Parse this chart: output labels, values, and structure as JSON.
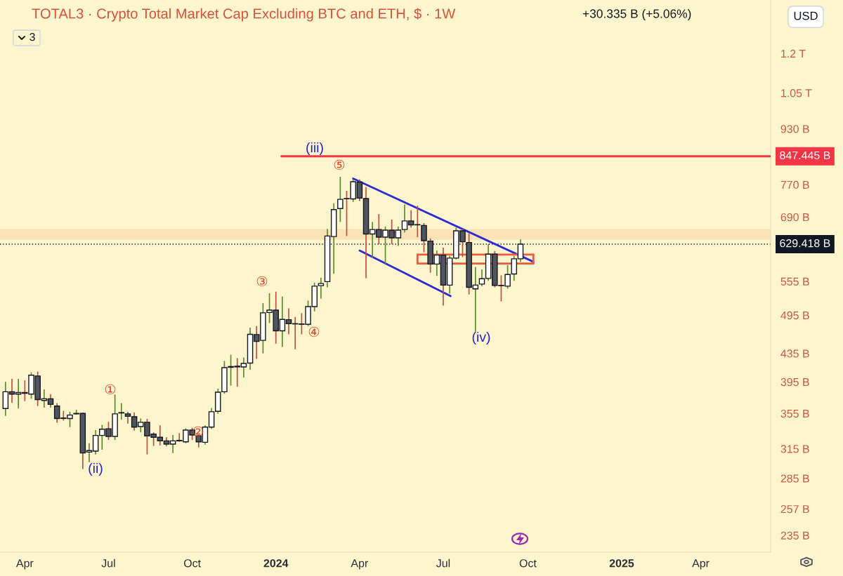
{
  "chart_data": {
    "type": "candlestick",
    "title": "TOTAL3 · Crypto Total Market Cap Excluding BTC and ETH, $ · 1W",
    "subtitle": "+30.335 B (+5.06%)",
    "x": [
      "2023-03-13",
      "2023-03-20",
      "2023-03-27",
      "2023-04-03",
      "2023-04-10",
      "2023-04-17",
      "2023-04-24",
      "2023-05-01",
      "2023-05-08",
      "2023-05-15",
      "2023-05-22",
      "2023-05-29",
      "2023-06-05",
      "2023-06-12",
      "2023-06-19",
      "2023-06-26",
      "2023-07-03",
      "2023-07-10",
      "2023-07-17",
      "2023-07-24",
      "2023-07-31",
      "2023-08-07",
      "2023-08-14",
      "2023-08-21",
      "2023-08-28",
      "2023-09-04",
      "2023-09-11",
      "2023-09-18",
      "2023-09-25",
      "2023-10-02",
      "2023-10-09",
      "2023-10-16",
      "2023-10-23",
      "2023-10-30",
      "2023-11-06",
      "2023-11-13",
      "2023-11-20",
      "2023-11-27",
      "2023-12-04",
      "2023-12-11",
      "2023-12-18",
      "2023-12-25",
      "2024-01-01",
      "2024-01-08",
      "2024-01-15",
      "2024-01-22",
      "2024-01-29",
      "2024-02-05",
      "2024-02-12",
      "2024-02-19",
      "2024-02-26",
      "2024-03-04",
      "2024-03-11",
      "2024-03-18",
      "2024-03-25",
      "2024-04-01",
      "2024-04-08",
      "2024-04-15",
      "2024-04-22",
      "2024-04-29",
      "2024-05-06",
      "2024-05-13",
      "2024-05-20",
      "2024-05-27",
      "2024-06-03",
      "2024-06-10",
      "2024-06-17",
      "2024-06-24",
      "2024-07-01",
      "2024-07-08",
      "2024-07-15",
      "2024-07-22",
      "2024-07-29",
      "2024-08-05",
      "2024-08-12",
      "2024-08-19",
      "2024-08-26",
      "2024-09-02",
      "2024-09-09",
      "2024-09-16",
      "2024-09-23"
    ],
    "ohlc": [
      [
        361000000000.0,
        395000000000.0,
        352000000000.0,
        382000000000.0
      ],
      [
        382000000000.0,
        399000000000.0,
        368000000000.0,
        379000000000.0
      ],
      [
        379000000000.0,
        399000000000.0,
        361000000000.0,
        381000000000.0
      ],
      [
        381000000000.0,
        397000000000.0,
        370000000000.0,
        380000000000.0
      ],
      [
        379000000000.0,
        408000000000.0,
        373000000000.0,
        404000000000.0
      ],
      [
        403000000000.0,
        409000000000.0,
        364000000000.0,
        372000000000.0
      ],
      [
        371000000000.0,
        385000000000.0,
        362000000000.0,
        373000000000.0
      ],
      [
        373000000000.0,
        379000000000.0,
        362000000000.0,
        366000000000.0
      ],
      [
        364000000000.0,
        367500000000.0,
        344000000000.0,
        349000000000.0
      ],
      [
        349500000000.0,
        358000000000.0,
        346500000000.0,
        349000000000.0
      ],
      [
        349000000000.0,
        357000000000.0,
        339000000000.0,
        353000000000.0
      ],
      [
        354500000000.0,
        359500000000.0,
        353500000000.0,
        355000000000.0
      ],
      [
        355000000000.0,
        356000000000.0,
        294000000000.0,
        310500000000.0
      ],
      [
        311500000000.0,
        321000000000.0,
        301000000000.0,
        313000000000.0
      ],
      [
        312500000000.0,
        335500000000.0,
        309000000000.0,
        329500000000.0
      ],
      [
        329500000000.0,
        341500000000.0,
        314000000000.0,
        336500000000.0
      ],
      [
        337000000000.0,
        345000000000.0,
        324500000000.0,
        328500000000.0
      ],
      [
        328500000000.0,
        378500000000.0,
        324500000000.0,
        354500000000.0
      ],
      [
        355500000000.0,
        367500000000.0,
        347500000000.0,
        356000000000.0
      ],
      [
        354500000000.0,
        357000000000.0,
        343000000000.0,
        351500000000.0
      ],
      [
        351000000000.0,
        356000000000.0,
        335000000000.0,
        339000000000.0
      ],
      [
        339500000000.0,
        349000000000.0,
        333000000000.0,
        344500000000.0
      ],
      [
        344500000000.0,
        348500000000.0,
        309000000000.0,
        329000000000.0
      ],
      [
        331000000000.0,
        333000000000.0,
        318000000000.0,
        327500000000.0
      ],
      [
        327500000000.0,
        341000000000.0,
        318500000000.0,
        323500000000.0
      ],
      [
        323500000000.0,
        327500000000.0,
        317500000000.0,
        320000000000.0
      ],
      [
        320000000000.0,
        330000000000.0,
        310500000000.0,
        323500000000.0
      ],
      [
        324000000000.0,
        332000000000.0,
        322500000000.0,
        323500000000.0
      ],
      [
        322500000000.0,
        337500000000.0,
        321000000000.0,
        335500000000.0
      ],
      [
        335500000000.0,
        338000000000.0,
        324500000000.0,
        330000000000.0
      ],
      [
        329000000000.0,
        330000000000.0,
        316500000000.0,
        322500000000.0
      ],
      [
        322000000000.0,
        341000000000.0,
        319500000000.0,
        339000000000.0
      ],
      [
        339000000000.0,
        361500000000.0,
        337000000000.0,
        357000000000.0
      ],
      [
        357500000000.0,
        386000000000.0,
        354500000000.0,
        381500000000.0
      ],
      [
        382000000000.0,
        424000000000.0,
        379500000000.0,
        414500000000.0
      ],
      [
        415000000000.0,
        433000000000.0,
        390000000000.0,
        416000000000.0
      ],
      [
        416500000000.0,
        428000000000.0,
        388500000000.0,
        415500000000.0
      ],
      [
        415500000000.0,
        429000000000.0,
        401000000000.0,
        420500000000.0
      ],
      [
        421000000000.0,
        474500000000.0,
        411500000000.0,
        464000000000.0
      ],
      [
        463500000000.0,
        477000000000.0,
        427000000000.0,
        453000000000.0
      ],
      [
        454500000000.0,
        515500000000.0,
        435000000000.0,
        499000000000.0
      ],
      [
        499500000000.0,
        533000000000.0,
        482000000000.0,
        503500000000.0
      ],
      [
        503500000000.0,
        536000000000.0,
        449500000000.0,
        469500000000.0
      ],
      [
        469500000000.0,
        527000000000.0,
        444500000000.0,
        488000000000.0
      ],
      [
        487500000000.0,
        506500000000.0,
        464000000000.0,
        481000000000.0
      ],
      [
        481000000000.0,
        492000000000.0,
        441000000000.0,
        480500000000.0
      ],
      [
        480500000000.0,
        498500000000.0,
        464000000000.0,
        480000000000.0
      ],
      [
        480000000000.0,
        520000000000.0,
        477000000000.0,
        509500000000.0
      ],
      [
        509500000000.0,
        552500000000.0,
        501500000000.0,
        546000000000.0
      ],
      [
        547000000000.0,
        562000000000.0,
        523500000000.0,
        551000000000.0
      ],
      [
        554500000000.0,
        663000000000.0,
        544000000000.0,
        647000000000.0
      ],
      [
        646000000000.0,
        723000000000.0,
        569500000000.0,
        707500000000.0
      ],
      [
        710000000000.0,
        790500000000.0,
        678500000000.0,
        732500000000.0
      ],
      [
        734500000000.0,
        754000000000.0,
        647000000000.0,
        734000000000.0
      ],
      [
        733500000000.0,
        782500000000.0,
        726000000000.0,
        777500000000.0
      ],
      [
        776500000000.0,
        783500000000.0,
        728500000000.0,
        735500000000.0
      ],
      [
        734500000000.0,
        764000000000.0,
        561000000000.0,
        651500000000.0
      ],
      [
        651500000000.0,
        678500000000.0,
        600500000000.0,
        661500000000.0
      ],
      [
        661500000000.0,
        697000000000.0,
        629500000000.0,
        644500000000.0
      ],
      [
        644500000000.0,
        668000000000.0,
        588500000000.0,
        660000000000.0
      ],
      [
        660000000000.0,
        684000000000.0,
        629500000000.0,
        643000000000.0
      ],
      [
        643000000000.0,
        668000000000.0,
        626000000000.0,
        660000000000.0
      ],
      [
        661500000000.0,
        720000000000.0,
        655000000000.0,
        681000000000.0
      ],
      [
        681000000000.0,
        706000000000.0,
        665500000000.0,
        672000000000.0
      ],
      [
        672500000000.0,
        717000000000.0,
        644500000000.0,
        672000000000.0
      ],
      [
        670500000000.0,
        676000000000.0,
        612500000000.0,
        637000000000.0
      ],
      [
        636000000000.0,
        642000000000.0,
        571500000000.0,
        588500000000.0
      ],
      [
        588500000000.0,
        616000000000.0,
        565500000000.0,
        606500000000.0
      ],
      [
        606500000000.0,
        622000000000.0,
        511500000000.0,
        548000000000.0
      ],
      [
        548000000000.0,
        605000000000.0,
        532500000000.0,
        600500000000.0
      ],
      [
        600500000000.0,
        665500000000.0,
        598000000000.0,
        658500000000.0
      ],
      [
        658500000000.0,
        662500000000.0,
        602500000000.0,
        634500000000.0
      ],
      [
        633000000000.0,
        653000000000.0,
        531000000000.0,
        544000000000.0
      ],
      [
        541000000000.0,
        582500000000.0,
        468000000000.0,
        548000000000.0
      ],
      [
        550000000000.0,
        578000000000.0,
        546000000000.0,
        560000000000.0
      ],
      [
        560500000000.0,
        629500000000.0,
        556000000000.0,
        608500000000.0
      ],
      [
        608500000000.0,
        615000000000.0,
        544000000000.0,
        547500000000.0
      ],
      [
        547500000000.0,
        566500000000.0,
        518500000000.0,
        547000000000.0
      ],
      [
        546000000000.0,
        586500000000.0,
        541500000000.0,
        568000000000.0
      ],
      [
        569000000000.0,
        605000000000.0,
        556000000000.0,
        599000000000.0
      ],
      [
        599000000000.0,
        639500000000.0,
        592500000000.0,
        629418000000.0
      ]
    ],
    "series": [
      {
        "type": "line",
        "x": [
          "2024-01-07",
          "2025-06-22"
        ],
        "values": [
          847445000000.0,
          847445000000.0
        ],
        "color": "#f23645",
        "value_labels": [
          null,
          "847.445 B"
        ]
      },
      {
        "type": "line",
        "x": [
          "2024-03-25",
          "2024-10-07"
        ],
        "values": [
          786000000000.0,
          593000000000.0
        ],
        "color": "#2b2bd6"
      },
      {
        "type": "line",
        "x": [
          "2024-04-01",
          "2024-07-09"
        ],
        "values": [
          616000000000.0,
          528000000000.0
        ],
        "color": "#2b2bd6"
      },
      {
        "type": "line",
        "x": [
          "2024-06-03",
          "2024-10-07"
        ],
        "values": [
          607500000000.0,
          607500000000.0
        ],
        "color": "#ef5a3c"
      },
      {
        "type": "line",
        "x": [
          "2024-06-03",
          "2024-10-07"
        ],
        "values": [
          589500000000.0,
          589500000000.0
        ],
        "color": "#ef5a3c"
      },
      {
        "type": "line",
        "x": [
          "2024-06-03",
          "2024-06-03"
        ],
        "values": [
          607500000000.0,
          589500000000.0
        ],
        "color": "#ef5a3c"
      },
      {
        "type": "line",
        "x": [
          "2024-10-07",
          "2024-10-07"
        ],
        "values": [
          607500000000.0,
          589500000000.0
        ],
        "color": "#ef5a3c"
      }
    ],
    "ref_lines": [
      {
        "axis": "y",
        "value": 629418000000.0,
        "label": "629.418 B",
        "color": "#131722",
        "line_style": "dotted"
      }
    ],
    "bands": [
      {
        "axis": "y",
        "from": 639000000000.0,
        "to": 662000000000.0,
        "color": "#f9e3b6"
      }
    ],
    "annotations": [
      "(ii)",
      "①",
      "②",
      "③",
      "④",
      "(iii)",
      "⑤",
      "(iv)",
      "USD",
      "3"
    ],
    "xlim": [
      "2023-03-07",
      "2025-06-22"
    ],
    "xticks": [
      {
        "value": "2023-04-03",
        "label": "Apr"
      },
      {
        "value": "2023-07-03",
        "label": "Jul"
      },
      {
        "value": "2023-10-02",
        "label": "Oct"
      },
      {
        "value": "2024-01-01",
        "label": "2024"
      },
      {
        "value": "2024-04-01",
        "label": "Apr"
      },
      {
        "value": "2024-07-01",
        "label": "Jul"
      },
      {
        "value": "2024-10-01",
        "label": "Oct"
      },
      {
        "value": "2025-01-11",
        "label": "2025"
      },
      {
        "value": "2025-04-07",
        "label": "Apr"
      }
    ],
    "ylim": [
      222000000000.0,
      1438000000000.0
    ],
    "yticks": [
      {
        "value": 235000000000.0,
        "label": "235 B"
      },
      {
        "value": 257000000000.0,
        "label": "257 B"
      },
      {
        "value": 285000000000.0,
        "label": "285 B"
      },
      {
        "value": 315000000000.0,
        "label": "315 B"
      },
      {
        "value": 355000000000.0,
        "label": "355 B"
      },
      {
        "value": 395000000000.0,
        "label": "395 B"
      },
      {
        "value": 435000000000.0,
        "label": "435 B"
      },
      {
        "value": 495000000000.0,
        "label": "495 B"
      },
      {
        "value": 555000000000.0,
        "label": "555 B"
      },
      {
        "value": 690000000000.0,
        "label": "690 B"
      },
      {
        "value": 770000000000.0,
        "label": "770 B"
      },
      {
        "value": 930000000000.0,
        "label": "930 B"
      },
      {
        "value": 1050000000000.0,
        "label": "1.05 T"
      },
      {
        "value": 1200000000000.0,
        "label": "1.2 T"
      }
    ],
    "log": true
  }
}
